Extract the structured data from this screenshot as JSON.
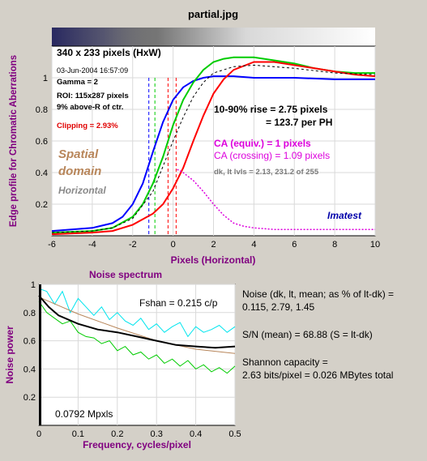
{
  "title": "partial.jpg",
  "colors": {
    "background": "#d4d0c8",
    "title": "#800080",
    "blue": "#0000ff",
    "green": "#00cc00",
    "red": "#ff0000",
    "magenta": "#dd00dd",
    "cyan": "#00e5ee",
    "brown": "#b8865a",
    "clipping": "#e00000"
  },
  "chart_data": [
    {
      "type": "line",
      "ylabel": "Edge profile for Chromatic Aberrations",
      "xlabel": "Pixels (Horizontal)",
      "xlim": [
        -6,
        10
      ],
      "ylim": [
        0,
        1.2
      ],
      "x_ticks": [
        "-6",
        "-4",
        "-2",
        "0",
        "2",
        "4",
        "6",
        "8",
        "10"
      ],
      "y_ticks": [
        "1",
        "0.8",
        "0.6",
        "0.4",
        "0.2"
      ],
      "series": [
        {
          "color": "blue",
          "x": [
            -6,
            -4,
            -3,
            -2.5,
            -2,
            -1.5,
            -1,
            -0.5,
            0,
            0.5,
            1,
            1.5,
            2,
            3,
            4,
            6,
            8,
            10
          ],
          "y": [
            0.03,
            0.05,
            0.08,
            0.12,
            0.2,
            0.33,
            0.53,
            0.72,
            0.86,
            0.94,
            0.98,
            1.0,
            1.01,
            1.01,
            1.0,
            1.0,
            0.99,
            0.99
          ]
        },
        {
          "color": "green",
          "x": [
            -6,
            -4,
            -3,
            -2,
            -1.5,
            -1,
            -0.5,
            0,
            0.5,
            1,
            1.5,
            2,
            2.5,
            3,
            4,
            5,
            6,
            7,
            8,
            9,
            10
          ],
          "y": [
            0.02,
            0.03,
            0.05,
            0.12,
            0.2,
            0.33,
            0.5,
            0.7,
            0.86,
            0.97,
            1.05,
            1.1,
            1.12,
            1.13,
            1.13,
            1.11,
            1.09,
            1.06,
            1.04,
            1.03,
            1.03
          ]
        },
        {
          "color": "red",
          "x": [
            -6,
            -4,
            -3,
            -2,
            -1,
            -0.5,
            0,
            0.5,
            1,
            1.5,
            2,
            2.5,
            3,
            4,
            5,
            6,
            7,
            8,
            9,
            10
          ],
          "y": [
            0.01,
            0.02,
            0.03,
            0.07,
            0.14,
            0.2,
            0.3,
            0.43,
            0.6,
            0.76,
            0.9,
            0.99,
            1.05,
            1.1,
            1.1,
            1.08,
            1.06,
            1.04,
            1.02,
            1.01
          ]
        },
        {
          "color": "dashed",
          "x": [
            -6,
            -4,
            -3,
            -2,
            -1,
            -0.5,
            0,
            0.5,
            1,
            1.5,
            2,
            3,
            4,
            6,
            8,
            10
          ],
          "y": [
            0.02,
            0.03,
            0.05,
            0.11,
            0.28,
            0.44,
            0.6,
            0.75,
            0.88,
            0.97,
            1.03,
            1.07,
            1.08,
            1.06,
            1.03,
            1.02
          ]
        },
        {
          "color": "magenta",
          "x": [
            0.2,
            0.5,
            1,
            1.5,
            2,
            2.5,
            3,
            3.5,
            4,
            5,
            6,
            7,
            8,
            9,
            10
          ],
          "y": [
            0.42,
            0.4,
            0.35,
            0.28,
            0.2,
            0.13,
            0.08,
            0.06,
            0.05,
            0.04,
            0.04,
            0.04,
            0.04,
            0.04,
            0.04
          ]
        }
      ],
      "vlines": [
        {
          "color": "blue",
          "x": -1.2
        },
        {
          "color": "green",
          "x": -0.9
        },
        {
          "color": "red",
          "x": -0.25
        },
        {
          "color": "red",
          "x": 0.15
        }
      ],
      "annotations": {
        "size": "340 x 233 pixels (HxW)",
        "date": "03-Jun-2004 16:57:09",
        "gamma": "Gamma = 2",
        "roi": "ROI: 115x287 pixels",
        "above": "9% above-R of ctr.",
        "clipping": "Clipping =   2.93%",
        "rise1": "10-90% rise = 2.75 pixels",
        "rise2": "= 123.7 per PH",
        "ca_equiv": "CA (equiv.) = 1 pixels",
        "ca_cross": "CA (crossing) = 1.09 pixels",
        "levels": "dk, lt lvls = 2.13, 231.2 of 255",
        "spatial": "Spatial",
        "domain": "domain",
        "direction": "Horizontal",
        "brand": "Imatest"
      }
    },
    {
      "type": "line",
      "title": "Noise spectrum",
      "ylabel": "Noise power",
      "xlabel": "Frequency, cycles/pixel",
      "xlim": [
        0,
        0.5
      ],
      "ylim": [
        0,
        1
      ],
      "x_ticks": [
        "0",
        "0.1",
        "0.2",
        "0.3",
        "0.4",
        "0.5"
      ],
      "y_ticks": [
        "1",
        "0.8",
        "0.6",
        "0.4",
        "0.2"
      ],
      "series": [
        {
          "color": "black",
          "x": [
            0,
            0.025,
            0.05,
            0.1,
            0.15,
            0.2,
            0.25,
            0.3,
            0.35,
            0.4,
            0.45,
            0.5
          ],
          "y": [
            0.92,
            0.84,
            0.78,
            0.72,
            0.68,
            0.66,
            0.63,
            0.6,
            0.57,
            0.56,
            0.55,
            0.56
          ]
        },
        {
          "color": "brown",
          "x": [
            0,
            0.1,
            0.2,
            0.3,
            0.4,
            0.5
          ],
          "y": [
            0.91,
            0.79,
            0.69,
            0.6,
            0.54,
            0.51
          ]
        },
        {
          "color": "cyan",
          "x": [
            0,
            0.02,
            0.04,
            0.06,
            0.08,
            0.1,
            0.12,
            0.14,
            0.16,
            0.18,
            0.2,
            0.22,
            0.24,
            0.26,
            0.28,
            0.3,
            0.32,
            0.34,
            0.36,
            0.38,
            0.4,
            0.42,
            0.44,
            0.46,
            0.48,
            0.5
          ],
          "y": [
            0.97,
            0.95,
            0.86,
            0.95,
            0.8,
            0.9,
            0.84,
            0.78,
            0.84,
            0.75,
            0.8,
            0.74,
            0.71,
            0.76,
            0.68,
            0.72,
            0.66,
            0.7,
            0.73,
            0.63,
            0.7,
            0.66,
            0.68,
            0.71,
            0.66,
            0.7
          ]
        },
        {
          "color": "green",
          "x": [
            0,
            0.02,
            0.04,
            0.06,
            0.08,
            0.1,
            0.12,
            0.14,
            0.16,
            0.18,
            0.2,
            0.22,
            0.24,
            0.26,
            0.28,
            0.3,
            0.32,
            0.34,
            0.36,
            0.38,
            0.4,
            0.42,
            0.44,
            0.46,
            0.48,
            0.5
          ],
          "y": [
            0.88,
            0.8,
            0.76,
            0.72,
            0.74,
            0.66,
            0.63,
            0.62,
            0.58,
            0.6,
            0.53,
            0.56,
            0.5,
            0.52,
            0.47,
            0.5,
            0.44,
            0.47,
            0.42,
            0.46,
            0.4,
            0.43,
            0.38,
            0.41,
            0.37,
            0.42
          ]
        }
      ],
      "annotations": {
        "fshan": "Fshan = 0.215 c/p",
        "mpxls": "0.0792 Mpxls"
      }
    }
  ],
  "noise_info": {
    "line1": "Noise (dk, lt, mean; as % of lt-dk) =",
    "line2": "0.115,   2.79,   1.45",
    "line3": "S/N (mean) = 68.88   (S = lt-dk)",
    "line4": "Shannon capacity =",
    "line5": "2.63 bits/pixel = 0.026 MBytes total"
  }
}
